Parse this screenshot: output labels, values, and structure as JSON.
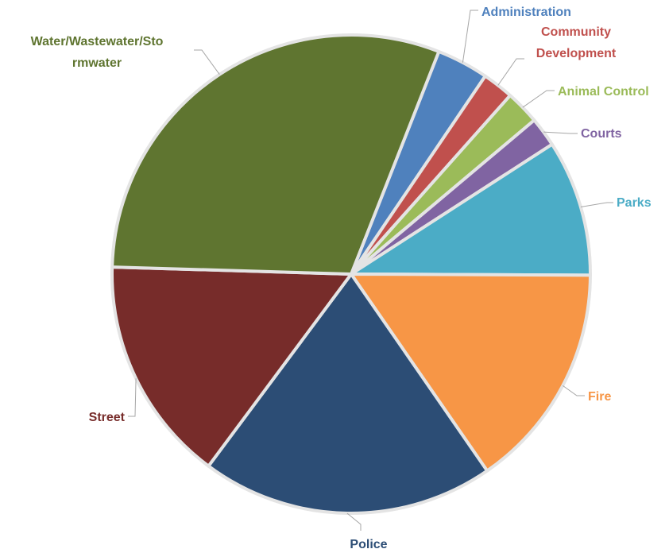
{
  "chart_data": {
    "type": "pie",
    "title": "",
    "slices": [
      {
        "label": "Administration",
        "value": 3.5,
        "color": "#4f81bd"
      },
      {
        "label": "Community Development",
        "label_lines": [
          "Community",
          "Development"
        ],
        "value": 2.1,
        "color": "#c0504d"
      },
      {
        "label": "Animal Control",
        "value": 2.3,
        "color": "#9bbb59"
      },
      {
        "label": "Courts",
        "value": 2.0,
        "color": "#8064a2"
      },
      {
        "label": "Parks",
        "value": 9.2,
        "color": "#4bacc6"
      },
      {
        "label": "Fire",
        "value": 15.3,
        "color": "#f79646"
      },
      {
        "label": "Police",
        "value": 19.8,
        "color": "#2c4d75"
      },
      {
        "label": "Street",
        "value": 15.3,
        "color": "#772c2a"
      },
      {
        "label": "Water/Wastewater/Stormwater",
        "label_lines": [
          "Water/Wastewater/Sto",
          "rmwater"
        ],
        "value": 30.5,
        "color": "#5f7530"
      }
    ],
    "start_angle_deg": 68.5,
    "direction": "clockwise",
    "data_labels": "category name outside with leader lines",
    "legend": "none"
  }
}
